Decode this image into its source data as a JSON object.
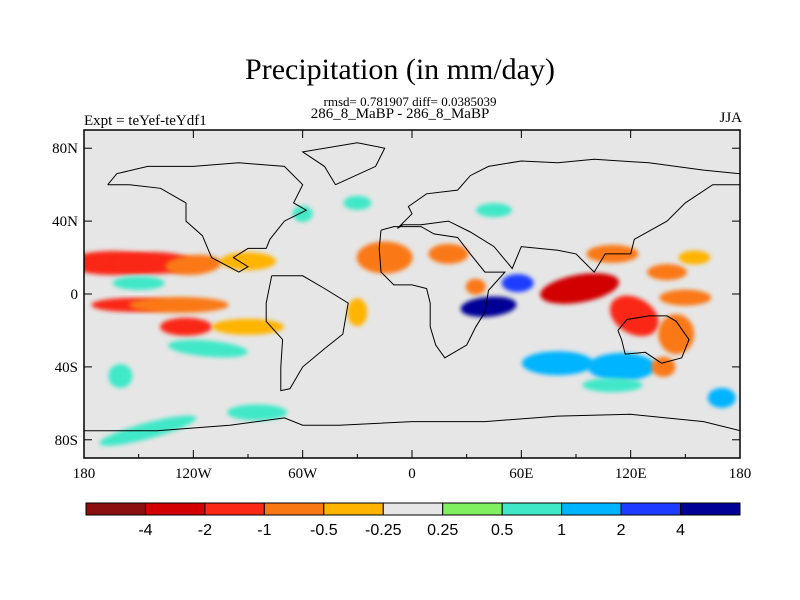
{
  "chart_data": {
    "type": "heatmap",
    "title": "Precipitation (in mm/day)",
    "stats_line": "rmsd= 0.781907 diff= 0.0385039",
    "case_line": "286_8_MaBP - 286_8_MaBP",
    "left_label": "Expt = teYef-teYdf1",
    "right_label": "JJA",
    "xlim": [
      180,
      540
    ],
    "ylim": [
      -90,
      90
    ],
    "x_ticks": [
      {
        "value": 180,
        "label": "180"
      },
      {
        "value": 240,
        "label": "120W"
      },
      {
        "value": 300,
        "label": "60W"
      },
      {
        "value": 360,
        "label": "0"
      },
      {
        "value": 420,
        "label": "60E"
      },
      {
        "value": 480,
        "label": "120E"
      },
      {
        "value": 540,
        "label": "180"
      }
    ],
    "y_ticks": [
      {
        "value": 80,
        "label": "80N"
      },
      {
        "value": 40,
        "label": "40N"
      },
      {
        "value": 0,
        "label": "0"
      },
      {
        "value": -40,
        "label": "40S"
      },
      {
        "value": -80,
        "label": "80S"
      }
    ],
    "background_color": "#e6e6e6",
    "levels": [
      -4,
      -2,
      -1,
      -0.5,
      -0.25,
      0.25,
      0.5,
      1,
      2,
      4
    ],
    "level_labels": [
      "-4",
      "-2",
      "-1",
      "-0.5",
      "-0.25",
      "0.25",
      "0.5",
      "1",
      "2",
      "4"
    ],
    "colors": [
      "#8c0f0f",
      "#d20000",
      "#fa2814",
      "#fa7814",
      "#ffb400",
      "#e6e6e6",
      "#80f060",
      "#40e8c8",
      "#00b4ff",
      "#1e3cff",
      "#000096"
    ],
    "fields": [
      {
        "lon": 196,
        "lat": 17,
        "value": -2
      },
      {
        "lon": 218,
        "lat": 17,
        "value": -2
      },
      {
        "lon": 240,
        "lat": 16,
        "value": -1
      },
      {
        "lon": 206,
        "lat": -6,
        "value": -2
      },
      {
        "lon": 232,
        "lat": -6,
        "value": -1
      },
      {
        "lon": 210,
        "lat": 6,
        "value": 0.5
      },
      {
        "lon": 236,
        "lat": -18,
        "value": -2
      },
      {
        "lon": 270,
        "lat": -18,
        "value": -0.5
      },
      {
        "lon": 270,
        "lat": 18,
        "value": -0.5
      },
      {
        "lon": 248,
        "lat": -30,
        "value": 0.5
      },
      {
        "lon": 330,
        "lat": -10,
        "value": -0.5
      },
      {
        "lon": 345,
        "lat": 20,
        "value": -1
      },
      {
        "lon": 380,
        "lat": 22,
        "value": -1
      },
      {
        "lon": 395,
        "lat": 4,
        "value": -1
      },
      {
        "lon": 402,
        "lat": -7,
        "value": 4
      },
      {
        "lon": 418,
        "lat": 6,
        "value": 2
      },
      {
        "lon": 452,
        "lat": 3,
        "value": -4
      },
      {
        "lon": 482,
        "lat": -12,
        "value": -2
      },
      {
        "lon": 470,
        "lat": 22,
        "value": -1
      },
      {
        "lon": 500,
        "lat": 12,
        "value": -1
      },
      {
        "lon": 515,
        "lat": 20,
        "value": -0.5
      },
      {
        "lon": 510,
        "lat": -2,
        "value": -1
      },
      {
        "lon": 440,
        "lat": -38,
        "value": 1
      },
      {
        "lon": 475,
        "lat": -40,
        "value": 1
      },
      {
        "lon": 470,
        "lat": -50,
        "value": 0.5
      },
      {
        "lon": 405,
        "lat": 46,
        "value": 0.5
      },
      {
        "lon": 300,
        "lat": 44,
        "value": 0.5
      },
      {
        "lon": 330,
        "lat": 50,
        "value": 0.5
      },
      {
        "lon": 420,
        "lat": -22,
        "value": -0.25
      },
      {
        "lon": 530,
        "lat": -57,
        "value": 1
      },
      {
        "lon": 505,
        "lat": -22,
        "value": -1
      },
      {
        "lon": 498,
        "lat": -40,
        "value": -1
      },
      {
        "lon": 200,
        "lat": -45,
        "value": 0.5
      },
      {
        "lon": 215,
        "lat": -75,
        "value": 0.5
      },
      {
        "lon": 275,
        "lat": -65,
        "value": 0.5
      }
    ]
  }
}
